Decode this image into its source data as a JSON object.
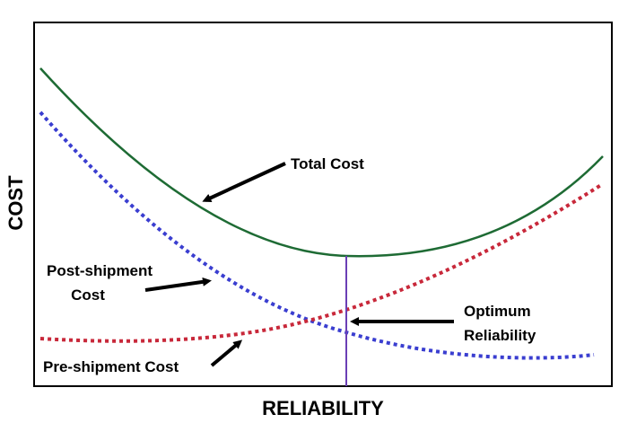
{
  "chart_data": {
    "type": "line",
    "title": "",
    "xlabel": "RELIABILITY",
    "ylabel": "COST",
    "grid": false,
    "legend": "none",
    "series": [
      {
        "name": "Total Cost",
        "color": "#1e6b34",
        "style": "solid"
      },
      {
        "name": "Post-shipment Cost",
        "color": "#3a3ed0",
        "style": "dotted"
      },
      {
        "name": "Pre-shipment Cost",
        "color": "#c8283a",
        "style": "dotted"
      }
    ],
    "optimum_line_color": "#6a3fb5",
    "annotations": {
      "total_cost": "Total Cost",
      "post_shipment_line1": "Post-shipment",
      "post_shipment_line2": "Cost",
      "pre_shipment": "Pre-shipment Cost",
      "optimum_line1": "Optimum",
      "optimum_line2": "Reliability"
    }
  }
}
